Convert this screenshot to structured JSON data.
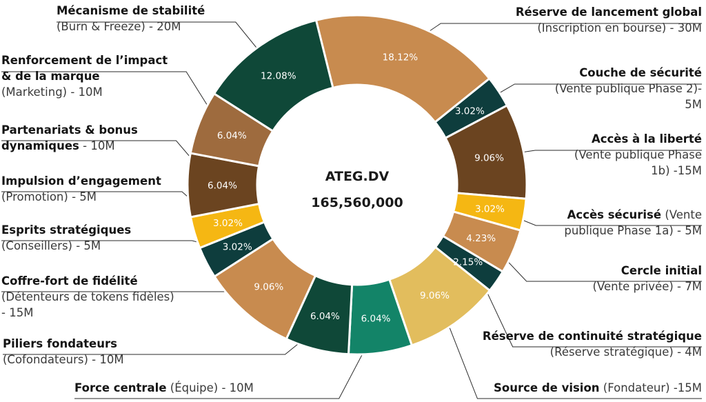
{
  "chart_data": {
    "type": "pie",
    "donut": true,
    "center": {
      "name": "ATEG.DV",
      "total": "165,560,000"
    },
    "slices": [
      {
        "pct": "18.12%",
        "value": 18.12,
        "color": "#c88b4f",
        "bold": "Réserve de lancement global",
        "normal": "",
        "line2": "(Inscription en bourse) - 30M"
      },
      {
        "pct": "3.02%",
        "value": 3.02,
        "color": "#0e3d3d",
        "bold": "Couche de sécurité",
        "normal": "",
        "line2": "(Vente publique Phase 2)-",
        "line3": "5M"
      },
      {
        "pct": "9.06%",
        "value": 9.06,
        "color": "#6b4420",
        "bold": "Accès à la liberté",
        "normal": "",
        "line2": "(Vente publique Phase",
        "line3": "1b) -15M"
      },
      {
        "pct": "3.02%",
        "value": 3.02,
        "color": "#f5b713",
        "bold": "Accès sécurisé",
        "normal": " (Vente",
        "line2": "publique Phase 1a) - 5M"
      },
      {
        "pct": "4.23%",
        "value": 4.23,
        "color": "#c88b4f",
        "bold": "Cercle initial",
        "normal": "",
        "line2": "(Vente privée)  - 7M"
      },
      {
        "pct": "2.15%",
        "value": 2.15,
        "color": "#0e3d3d",
        "bold": "Réserve de continuité stratégique",
        "normal": "",
        "line2": "(Réserve stratégique) - 4M"
      },
      {
        "pct": "9.06%",
        "value": 9.06,
        "color": "#e2bd5d",
        "bold": "Source de vision",
        "normal": " (Fondateur) -15M"
      },
      {
        "pct": "6.04%",
        "value": 6.04,
        "color": "#138468",
        "bold": "Force centrale",
        "normal": " (Équipe) - 10M"
      },
      {
        "pct": "6.04%",
        "value": 6.04,
        "color": "#0f4838",
        "bold": "Piliers fondateurs",
        "normal": "",
        "line2": "(Cofondateurs) - 10M"
      },
      {
        "pct": "9.06%",
        "value": 9.06,
        "color": "#c88b4f",
        "bold": "Coffre-fort de fidélité",
        "normal": "",
        "line2": "(Détenteurs de tokens fidèles)",
        "line3": "- 15M"
      },
      {
        "pct": "3.02%",
        "value": 3.02,
        "color": "#0e3d3d",
        "bold": "Esprits stratégiques",
        "normal": "",
        "line2": "(Conseillers) - 5M"
      },
      {
        "pct": "3.02%",
        "value": 3.02,
        "color": "#f5b713",
        "bold": "Impulsion d’engagement",
        "normal": "",
        "line2": "(Promotion) - 5M"
      },
      {
        "pct": "6.04%",
        "value": 6.04,
        "color": "#6b4420",
        "bold": "Partenariats & bonus",
        "normal": "",
        "line2b": "dynamiques",
        "line2": " - 10M"
      },
      {
        "pct": "6.04%",
        "value": 6.04,
        "color": "#9e6b3e",
        "bold": "Renforcement de l’impact",
        "normal": "",
        "line2b": "& de la marque",
        "line3": "(Marketing) - 10M"
      },
      {
        "pct": "12.08%",
        "value": 12.08,
        "color": "#0f4838",
        "bold": "Mécanisme de stabilité",
        "normal": "",
        "line2": "(Burn & Freeze) - 20M"
      }
    ]
  }
}
